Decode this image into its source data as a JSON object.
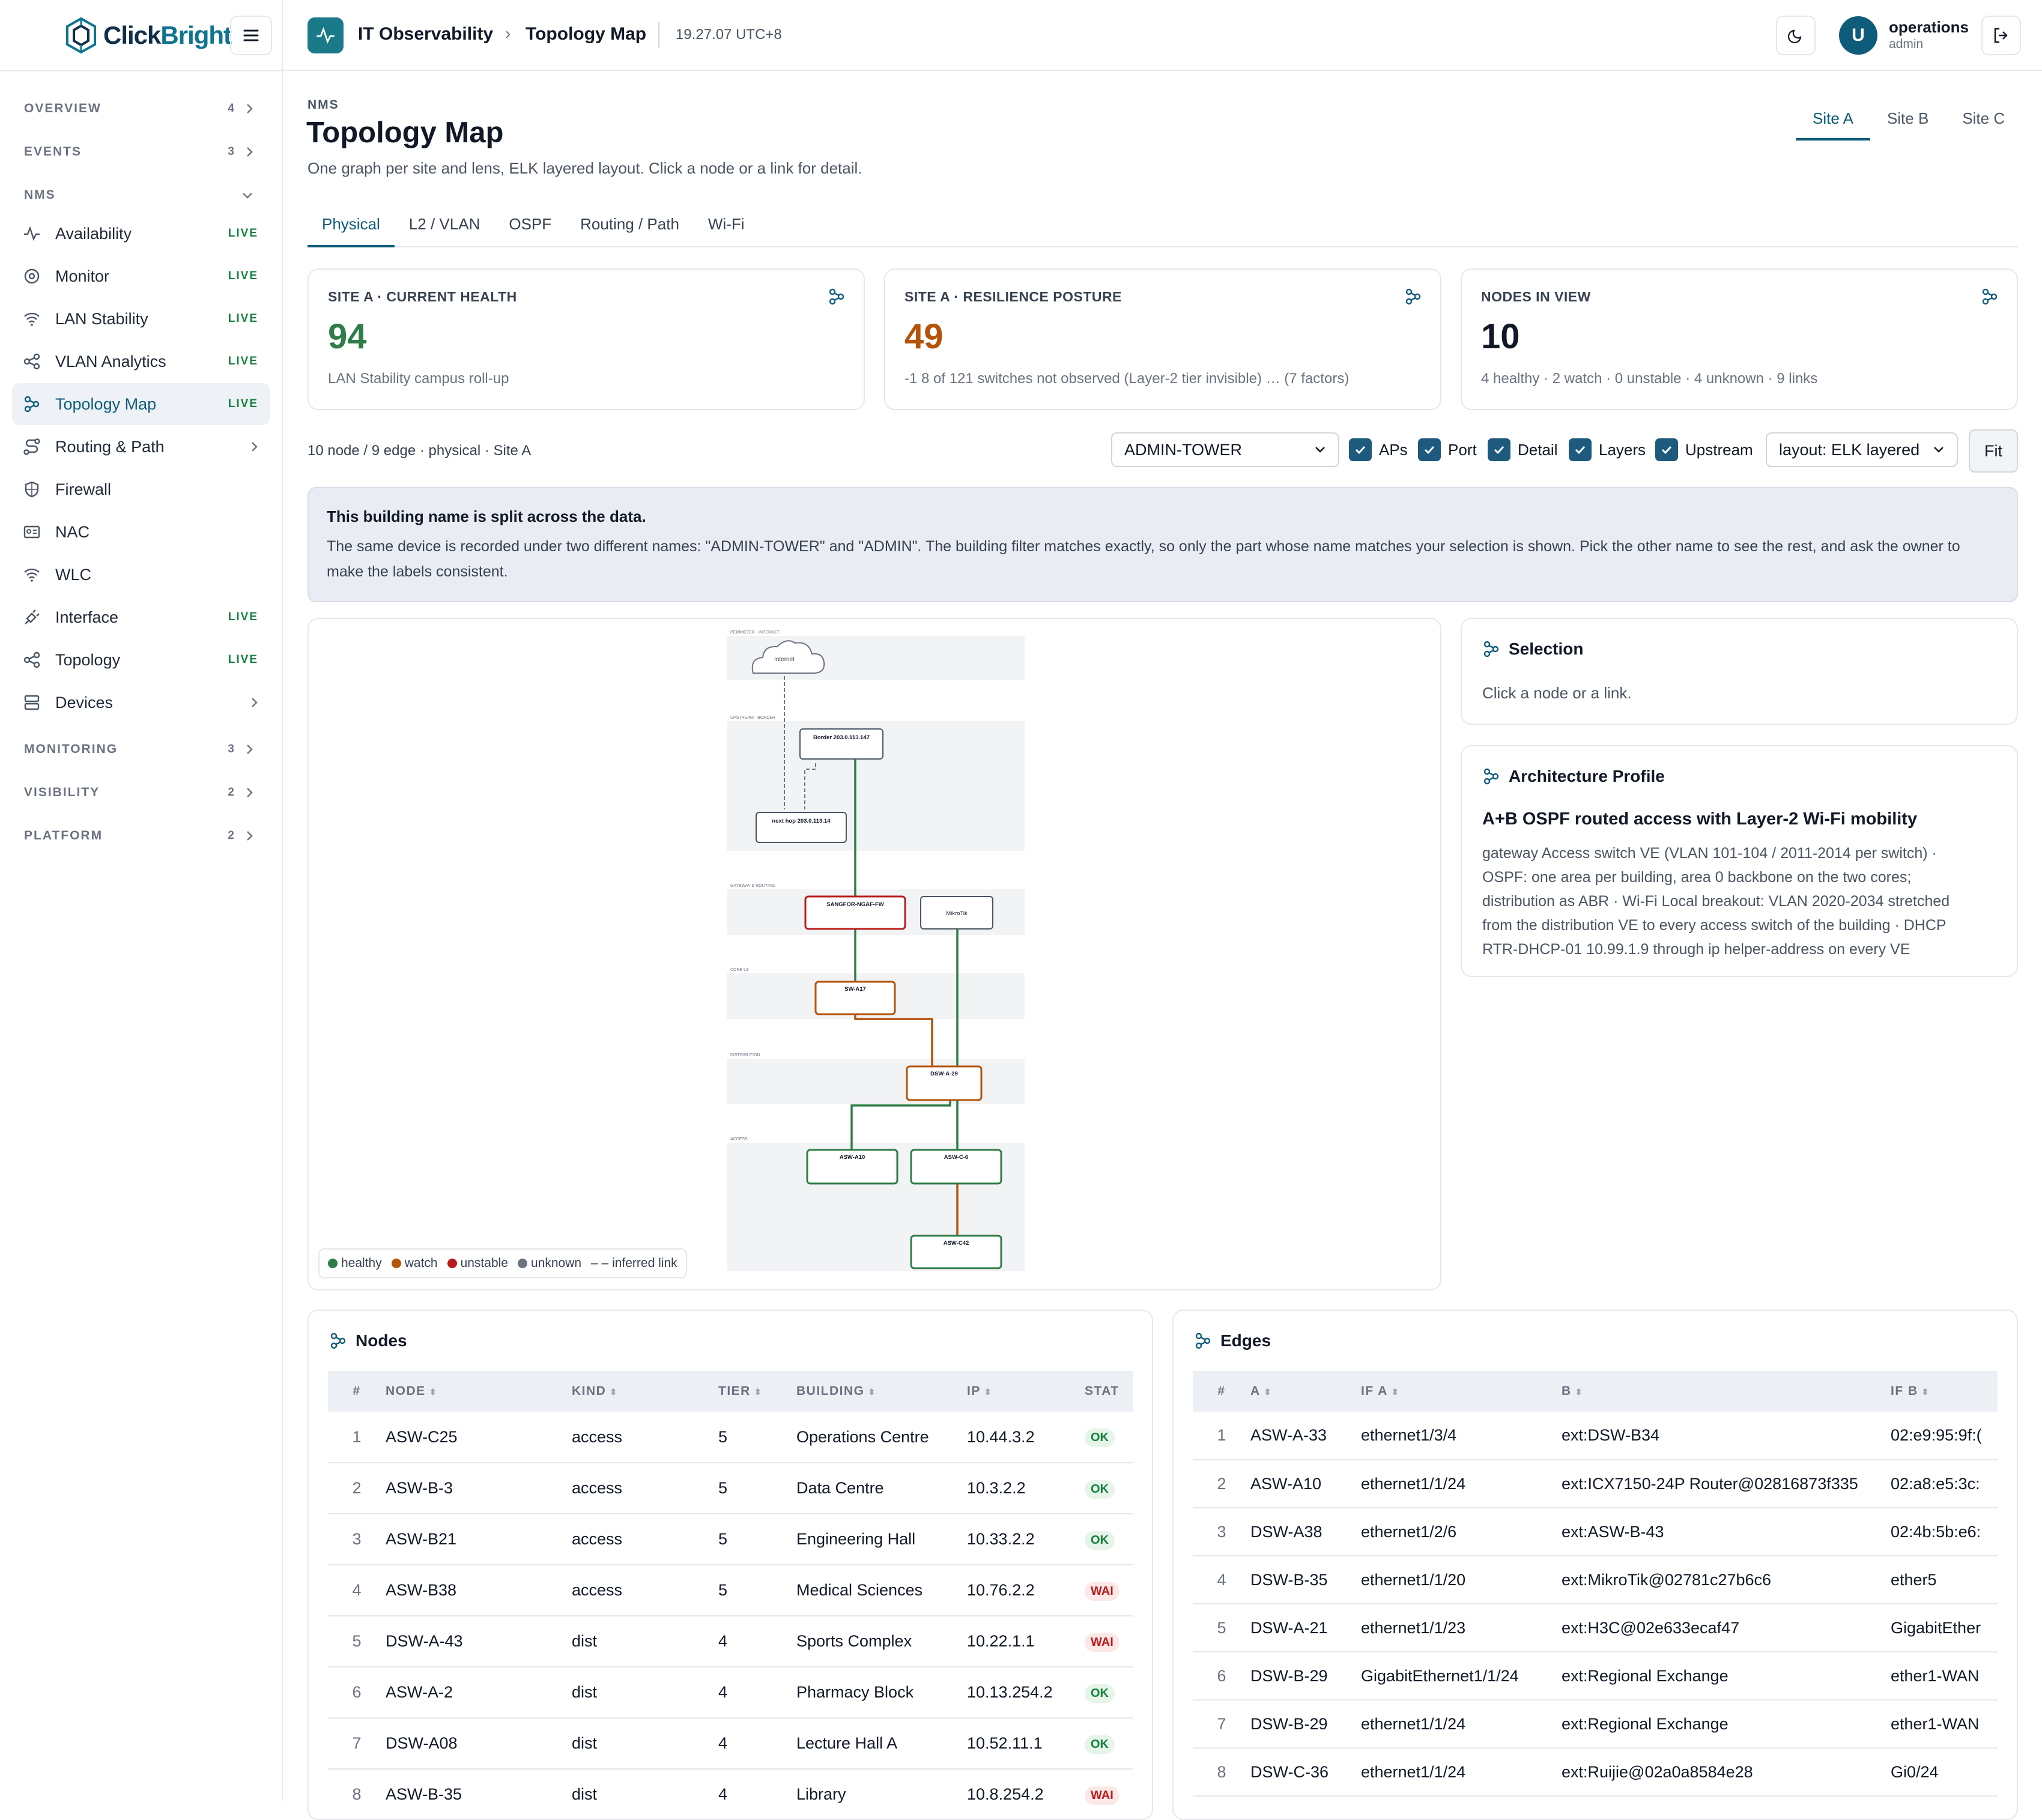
{
  "brand": {
    "prefix": "Click",
    "suffix": "Bright"
  },
  "topbar": {
    "app": "IT Observability",
    "separator": "›",
    "page": "Topology Map",
    "time": "19.27.07 UTC+8",
    "user": {
      "initial": "U",
      "name": "operations",
      "role": "admin"
    }
  },
  "sidebar": {
    "sections": {
      "overview": {
        "label": "OVERVIEW",
        "count": "4"
      },
      "events": {
        "label": "EVENTS",
        "count": "3"
      },
      "nms": {
        "label": "NMS"
      },
      "monitoring": {
        "label": "MONITORING",
        "count": "3"
      },
      "visibility": {
        "label": "VISIBILITY",
        "count": "2"
      },
      "platform": {
        "label": "PLATFORM",
        "count": "2"
      }
    },
    "items": [
      {
        "label": "Availability",
        "badge": "LIVE",
        "icon": "activity-icon"
      },
      {
        "label": "Monitor",
        "badge": "LIVE",
        "icon": "target-icon"
      },
      {
        "label": "LAN Stability",
        "badge": "LIVE",
        "icon": "wifi-icon"
      },
      {
        "label": "VLAN Analytics",
        "badge": "LIVE",
        "icon": "share-icon"
      },
      {
        "label": "Topology Map",
        "badge": "LIVE",
        "icon": "topology-icon"
      },
      {
        "label": "Routing & Path",
        "icon": "route-icon"
      },
      {
        "label": "Firewall",
        "icon": "shield-icon"
      },
      {
        "label": "NAC",
        "icon": "id-card-icon"
      },
      {
        "label": "WLC",
        "icon": "wifi-icon"
      },
      {
        "label": "Interface",
        "badge": "LIVE",
        "icon": "plug-icon"
      },
      {
        "label": "Topology",
        "badge": "LIVE",
        "icon": "share-icon"
      },
      {
        "label": "Devices",
        "icon": "server-icon"
      }
    ]
  },
  "header": {
    "eyebrow": "NMS",
    "title": "Topology Map",
    "subtitle": "One graph per site and lens, ELK layered layout. Click a node or a link for detail."
  },
  "site_tabs": [
    "Site A",
    "Site B",
    "Site C"
  ],
  "lens_tabs": [
    "Physical",
    "L2 / VLAN",
    "OSPF",
    "Routing / Path",
    "Wi-Fi"
  ],
  "kpis": [
    {
      "label": "SITE A · CURRENT HEALTH",
      "value": "94",
      "desc": "LAN Stability campus roll-up",
      "color": "#2e7d46"
    },
    {
      "label": "SITE A · RESILIENCE POSTURE",
      "value": "49",
      "desc": "-1 8 of 121 switches not observed (Layer-2 tier invisible) … (7 factors)",
      "color": "#b45309"
    },
    {
      "label": "NODES IN VIEW",
      "value": "10",
      "desc": "4 healthy · 2 watch · 0 unstable · 4 unknown · 9 links",
      "color": "#111827"
    }
  ],
  "controls": {
    "summary": "10 node / 9 edge · physical · Site A",
    "building": "ADMIN-TOWER",
    "checkboxes": [
      "APs",
      "Port",
      "Detail",
      "Layers",
      "Upstream"
    ],
    "layout": "layout: ELK layered",
    "fit": "Fit"
  },
  "notice": {
    "title": "This building name is split across the data.",
    "body": "The same device is recorded under two different names: \"ADMIN-TOWER\" and \"ADMIN\". The building filter matches exactly, so only the part whose name matches your selection is shown. Pick the other name to see the rest, and ask the owner to make the labels consistent."
  },
  "map": {
    "bands": [
      "PERIMETER · INTERNET",
      "UPSTREAM · BORDER",
      "GATEWAY & ROUTING",
      "CORE L3",
      "DISTRIBUTION",
      "ACCESS"
    ],
    "nodes": {
      "internet": "Internet",
      "border": "Border 203.0.113.147",
      "nexthop": "next hop 203.0.113.14",
      "fw": "SANGFOR-NGAF-FW",
      "mikrotik": "MikroTik",
      "core": "SW-A17",
      "dist": "DSW-A-29",
      "acc1": "ASW-A10",
      "acc2": "ASW-C-6",
      "acc3": "ASW-C42"
    },
    "colors": {
      "healthy": "#2e7d46",
      "watch": "#b45309",
      "unstable": "#b91c1c",
      "unknown": "#6b7280"
    },
    "legend": [
      "healthy",
      "watch",
      "unstable",
      "unknown",
      "– – inferred link"
    ]
  },
  "selection": {
    "title": "Selection",
    "hint": "Click a node or a link."
  },
  "architecture": {
    "title": "Architecture Profile",
    "headline": "A+B OSPF routed access with Layer-2 Wi-Fi mobility",
    "lines": [
      "gateway Access switch VE (VLAN 101-104 / 2011-2014 per switch) ·",
      "OSPF: one area per building, area 0 backbone on the two cores;",
      "distribution as ABR · Wi-Fi Local breakout: VLAN 2020-2034 stretched",
      "from the distribution VE to every access switch of the building · DHCP",
      "RTR-DHCP-01 10.99.1.9 through ip helper-address on every VE"
    ]
  },
  "nodes_table": {
    "title": "Nodes",
    "columns": [
      "#",
      "NODE",
      "KIND",
      "TIER",
      "BUILDING",
      "IP",
      "STAT"
    ],
    "rows": [
      [
        "1",
        "ASW-C25",
        "access",
        "5",
        "Operations Centre",
        "10.44.3.2",
        "OK"
      ],
      [
        "2",
        "ASW-B-3",
        "access",
        "5",
        "Data Centre",
        "10.3.2.2",
        "OK"
      ],
      [
        "3",
        "ASW-B21",
        "access",
        "5",
        "Engineering Hall",
        "10.33.2.2",
        "OK"
      ],
      [
        "4",
        "ASW-B38",
        "access",
        "5",
        "Medical Sciences",
        "10.76.2.2",
        "WAI"
      ],
      [
        "5",
        "DSW-A-43",
        "dist",
        "4",
        "Sports Complex",
        "10.22.1.1",
        "WAI"
      ],
      [
        "6",
        "ASW-A-2",
        "dist",
        "4",
        "Pharmacy Block",
        "10.13.254.2",
        "OK"
      ],
      [
        "7",
        "DSW-A08",
        "dist",
        "4",
        "Lecture Hall A",
        "10.52.11.1",
        "OK"
      ],
      [
        "8",
        "ASW-B-35",
        "dist",
        "4",
        "Library",
        "10.8.254.2",
        "WAI"
      ]
    ]
  },
  "edges_table": {
    "title": "Edges",
    "columns": [
      "#",
      "A",
      "IF A",
      "B",
      "IF B"
    ],
    "rows": [
      [
        "1",
        "ASW-A-33",
        "ethernet1/3/4",
        "ext:DSW-B34",
        "02:e9:95:9f:("
      ],
      [
        "2",
        "ASW-A10",
        "ethernet1/1/24",
        "ext:ICX7150-24P Router@02816873f335",
        "02:a8:e5:3c:"
      ],
      [
        "3",
        "DSW-A38",
        "ethernet1/2/6",
        "ext:ASW-B-43",
        "02:4b:5b:e6:"
      ],
      [
        "4",
        "DSW-B-35",
        "ethernet1/1/20",
        "ext:MikroTik@02781c27b6c6",
        "ether5"
      ],
      [
        "5",
        "DSW-A-21",
        "ethernet1/1/23",
        "ext:H3C@02e633ecaf47",
        "GigabitEther"
      ],
      [
        "6",
        "DSW-B-29",
        "GigabitEthernet1/1/24",
        "ext:Regional Exchange",
        "ether1-WAN"
      ],
      [
        "7",
        "DSW-B-29",
        "ethernet1/1/24",
        "ext:Regional Exchange",
        "ether1-WAN"
      ],
      [
        "8",
        "DSW-C-36",
        "ethernet1/1/24",
        "ext:Ruijie@02a0a8584e28",
        "Gi0/24"
      ]
    ]
  }
}
